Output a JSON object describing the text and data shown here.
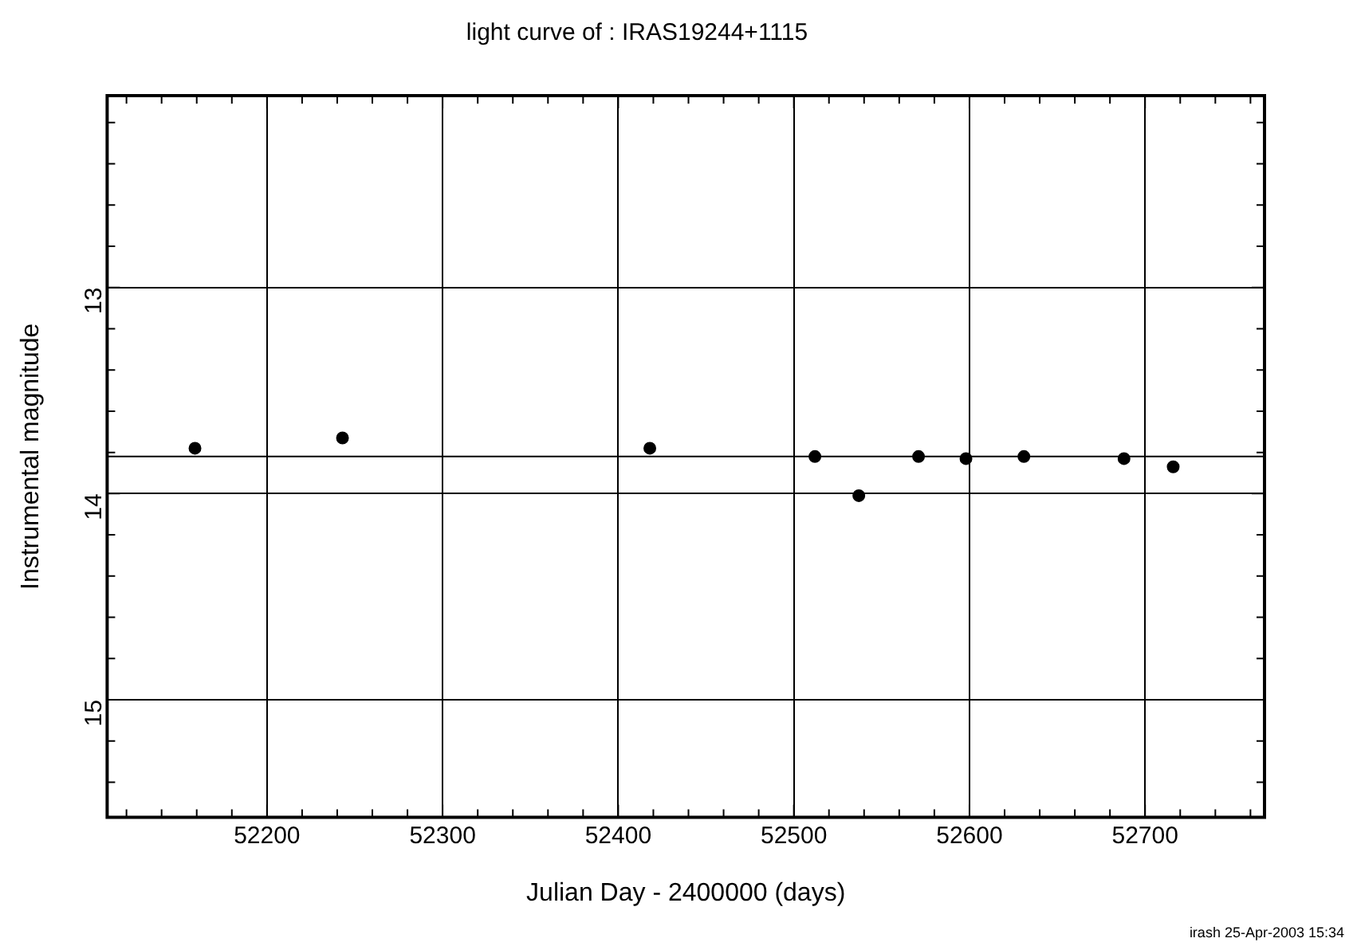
{
  "chart_data": {
    "type": "scatter",
    "title": "light curve of : IRAS19244+1115",
    "xlabel": "Julian Day - 2400000 (days)",
    "ylabel": "Instrumental magnitude",
    "annotations": [
      "irash 25-Apr-2003 15:34"
    ],
    "series": [
      {
        "color": "#000000",
        "x": [
          52159,
          52243,
          52418,
          52512,
          52537,
          52571,
          52598,
          52631,
          52688,
          52716
        ],
        "values": [
          13.78,
          13.73,
          13.78,
          13.82,
          14.01,
          13.82,
          13.83,
          13.82,
          13.83,
          13.87
        ]
      }
    ],
    "ref_lines": [
      {
        "axis": "y",
        "value": 13.82,
        "color": "#000000"
      }
    ],
    "xlim": [
      52109,
      52768
    ],
    "xticks": [
      {
        "value": 52120,
        "label": null
      },
      {
        "value": 52140,
        "label": null
      },
      {
        "value": 52160,
        "label": null
      },
      {
        "value": 52180,
        "label": null
      },
      52200,
      {
        "value": 52220,
        "label": null
      },
      {
        "value": 52240,
        "label": null
      },
      {
        "value": 52260,
        "label": null
      },
      {
        "value": 52280,
        "label": null
      },
      52300,
      {
        "value": 52320,
        "label": null
      },
      {
        "value": 52340,
        "label": null
      },
      {
        "value": 52360,
        "label": null
      },
      {
        "value": 52380,
        "label": null
      },
      52400,
      {
        "value": 52420,
        "label": null
      },
      {
        "value": 52440,
        "label": null
      },
      {
        "value": 52460,
        "label": null
      },
      {
        "value": 52480,
        "label": null
      },
      52500,
      {
        "value": 52520,
        "label": null
      },
      {
        "value": 52540,
        "label": null
      },
      {
        "value": 52560,
        "label": null
      },
      {
        "value": 52580,
        "label": null
      },
      52600,
      {
        "value": 52620,
        "label": null
      },
      {
        "value": 52640,
        "label": null
      },
      {
        "value": 52660,
        "label": null
      },
      {
        "value": 52680,
        "label": null
      },
      52700,
      {
        "value": 52720,
        "label": null
      },
      {
        "value": 52740,
        "label": null
      },
      {
        "value": 52760,
        "label": null
      }
    ],
    "ylim": [
      15.57,
      12.07
    ],
    "yticks": [
      {
        "value": 12.2,
        "label": null
      },
      {
        "value": 12.4,
        "label": null
      },
      {
        "value": 12.6,
        "label": null
      },
      {
        "value": 12.8,
        "label": null
      },
      13,
      {
        "value": 13.2,
        "label": null
      },
      {
        "value": 13.4,
        "label": null
      },
      {
        "value": 13.6,
        "label": null
      },
      {
        "value": 13.8,
        "label": null
      },
      14,
      {
        "value": 14.2,
        "label": null
      },
      {
        "value": 14.4,
        "label": null
      },
      {
        "value": 14.6,
        "label": null
      },
      {
        "value": 14.8,
        "label": null
      },
      15,
      {
        "value": 15.2,
        "label": null
      },
      {
        "value": 15.4,
        "label": null
      }
    ],
    "grid": true,
    "marker": "circle",
    "legend": false
  }
}
